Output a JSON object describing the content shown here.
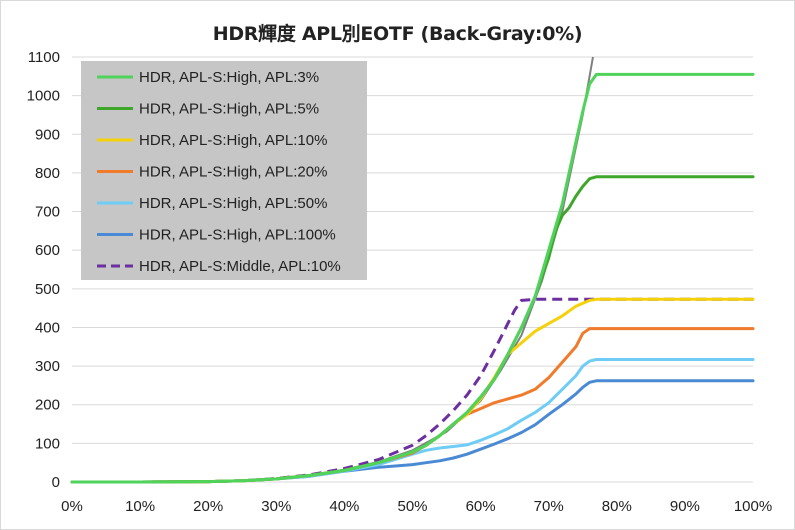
{
  "chart_data": {
    "type": "line",
    "title": "HDR輝度 APL別EOTF (Back-Gray:0%)",
    "xlabel": "",
    "ylabel": "",
    "xlim": [
      0,
      100
    ],
    "ylim": [
      0,
      1100
    ],
    "x_ticks": [
      "0%",
      "10%",
      "20%",
      "30%",
      "40%",
      "50%",
      "60%",
      "70%",
      "80%",
      "90%",
      "100%"
    ],
    "y_ticks": [
      "0",
      "100",
      "200",
      "300",
      "400",
      "500",
      "600",
      "700",
      "800",
      "900",
      "1000",
      "1100"
    ],
    "grid": "horizontal",
    "legend_position": "top-left",
    "reference_curve": {
      "color": "#808080",
      "x": [
        0,
        10,
        20,
        25,
        30,
        35,
        40,
        45,
        50,
        55,
        60,
        63,
        66,
        69,
        72,
        75,
        76.5
      ],
      "y": [
        0,
        0,
        1,
        3,
        8,
        17,
        32,
        52,
        82,
        130,
        210,
        290,
        380,
        520,
        700,
        950,
        1100
      ]
    },
    "series": [
      {
        "name": "HDR, APL-S:High, APL:3%",
        "color": "#4fd35a",
        "dash": false,
        "x": [
          0,
          10,
          20,
          25,
          30,
          35,
          40,
          45,
          50,
          52,
          54,
          56,
          58,
          60,
          62,
          64,
          66,
          68,
          70,
          72,
          74,
          75,
          76,
          77,
          80,
          85,
          90,
          95,
          100
        ],
        "y": [
          0,
          0,
          1,
          3,
          8,
          17,
          30,
          50,
          78,
          95,
          120,
          150,
          180,
          220,
          265,
          330,
          400,
          480,
          600,
          720,
          880,
          960,
          1030,
          1055,
          1055,
          1055,
          1055,
          1055,
          1055
        ]
      },
      {
        "name": "HDR, APL-S:High, APL:5%",
        "color": "#3fa62c",
        "dash": false,
        "x": [
          0,
          10,
          20,
          25,
          30,
          35,
          40,
          45,
          50,
          52,
          54,
          56,
          58,
          60,
          62,
          64,
          66,
          68,
          70,
          71,
          72,
          73,
          74,
          75,
          76,
          77,
          80,
          85,
          90,
          95,
          100
        ],
        "y": [
          0,
          0,
          1,
          3,
          8,
          17,
          30,
          50,
          78,
          95,
          120,
          150,
          180,
          220,
          265,
          330,
          400,
          480,
          580,
          650,
          690,
          710,
          740,
          765,
          785,
          790,
          790,
          790,
          790,
          790,
          790
        ]
      },
      {
        "name": "HDR, APL-S:High, APL:10%",
        "color": "#f5d10a",
        "dash": false,
        "x": [
          0,
          10,
          20,
          25,
          30,
          35,
          40,
          45,
          50,
          52,
          54,
          56,
          58,
          60,
          62,
          64,
          66,
          68,
          70,
          72,
          74,
          76,
          77,
          80,
          85,
          90,
          95,
          100
        ],
        "y": [
          0,
          0,
          1,
          3,
          8,
          17,
          30,
          50,
          78,
          95,
          120,
          150,
          175,
          215,
          270,
          330,
          360,
          390,
          410,
          430,
          455,
          470,
          473,
          473,
          473,
          473,
          473,
          473
        ]
      },
      {
        "name": "HDR, APL-S:High, APL:20%",
        "color": "#f07b2c",
        "dash": false,
        "x": [
          0,
          10,
          20,
          25,
          30,
          35,
          40,
          45,
          50,
          52,
          54,
          56,
          58,
          60,
          62,
          64,
          66,
          68,
          70,
          72,
          74,
          75,
          76,
          77,
          80,
          85,
          90,
          95,
          100
        ],
        "y": [
          0,
          0,
          1,
          3,
          8,
          17,
          30,
          50,
          75,
          95,
          120,
          150,
          175,
          190,
          205,
          215,
          225,
          240,
          270,
          310,
          350,
          385,
          397,
          397,
          397,
          397,
          397,
          397,
          397
        ]
      },
      {
        "name": "HDR, APL-S:High, APL:50%",
        "color": "#6fcdf5",
        "dash": false,
        "x": [
          0,
          10,
          20,
          25,
          30,
          35,
          40,
          45,
          50,
          52,
          54,
          56,
          58,
          60,
          62,
          64,
          66,
          68,
          70,
          72,
          74,
          75,
          76,
          77,
          80,
          85,
          90,
          95,
          100
        ],
        "y": [
          0,
          0,
          1,
          3,
          8,
          15,
          28,
          45,
          72,
          82,
          88,
          92,
          96,
          108,
          122,
          138,
          160,
          180,
          205,
          240,
          275,
          300,
          313,
          317,
          317,
          317,
          317,
          317,
          317
        ]
      },
      {
        "name": "HDR, APL-S:High, APL:100%",
        "color": "#4a8ad4",
        "dash": false,
        "x": [
          0,
          10,
          20,
          25,
          30,
          35,
          40,
          45,
          50,
          52,
          54,
          56,
          58,
          60,
          62,
          64,
          66,
          68,
          70,
          72,
          74,
          75,
          76,
          77,
          80,
          85,
          90,
          95,
          100
        ],
        "y": [
          0,
          0,
          1,
          3,
          8,
          15,
          28,
          38,
          45,
          50,
          55,
          62,
          72,
          85,
          98,
          112,
          128,
          148,
          175,
          200,
          228,
          245,
          258,
          262,
          262,
          262,
          262,
          262,
          262
        ]
      },
      {
        "name": "HDR, APL-S:Middle, APL:10%",
        "color": "#6b2fa0",
        "dash": true,
        "x": [
          0,
          10,
          20,
          25,
          30,
          35,
          40,
          45,
          50,
          52,
          54,
          56,
          58,
          60,
          62,
          64,
          65,
          66,
          68,
          70,
          72,
          75,
          80,
          85,
          90,
          95,
          100
        ],
        "y": [
          0,
          0,
          1,
          3,
          9,
          19,
          35,
          58,
          95,
          120,
          150,
          185,
          225,
          275,
          340,
          410,
          445,
          470,
          473,
          473,
          473,
          473,
          473,
          473,
          473,
          473,
          473
        ]
      }
    ]
  }
}
